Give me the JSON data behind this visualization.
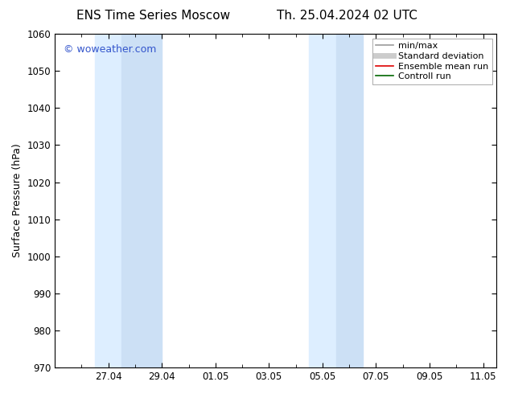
{
  "title_left": "ENS Time Series Moscow",
  "title_right": "Th. 25.04.2024 02 UTC",
  "ylabel": "Surface Pressure (hPa)",
  "ylim": [
    970,
    1060
  ],
  "yticks": [
    970,
    980,
    990,
    1000,
    1010,
    1020,
    1030,
    1040,
    1050,
    1060
  ],
  "xlim": [
    0.0,
    16.5
  ],
  "xtick_labels": [
    "27.04",
    "29.04",
    "01.05",
    "03.05",
    "05.05",
    "07.05",
    "09.05",
    "11.05"
  ],
  "xtick_positions": [
    2.0,
    4.0,
    6.0,
    8.0,
    10.0,
    12.0,
    14.0,
    16.0
  ],
  "watermark": "© woweather.com",
  "watermark_color": "#3355cc",
  "bg_color": "#ffffff",
  "plot_bg_color": "#ffffff",
  "shaded_regions": [
    {
      "x_start": 1.5,
      "x_end": 2.5,
      "color": "#ddeeff"
    },
    {
      "x_start": 2.5,
      "x_end": 4.0,
      "color": "#cce0f5"
    },
    {
      "x_start": 9.5,
      "x_end": 10.5,
      "color": "#ddeeff"
    },
    {
      "x_start": 10.5,
      "x_end": 11.5,
      "color": "#cce0f5"
    }
  ],
  "legend_entries": [
    {
      "label": "min/max",
      "color": "#999999",
      "lw": 1.2
    },
    {
      "label": "Standard deviation",
      "color": "#cccccc",
      "lw": 5
    },
    {
      "label": "Ensemble mean run",
      "color": "#dd0000",
      "lw": 1.2
    },
    {
      "label": "Controll run",
      "color": "#006600",
      "lw": 1.2
    }
  ],
  "tick_color": "#000000",
  "font_family": "DejaVu Sans",
  "title_fontsize": 11,
  "label_fontsize": 9,
  "tick_fontsize": 8.5,
  "legend_fontsize": 8
}
